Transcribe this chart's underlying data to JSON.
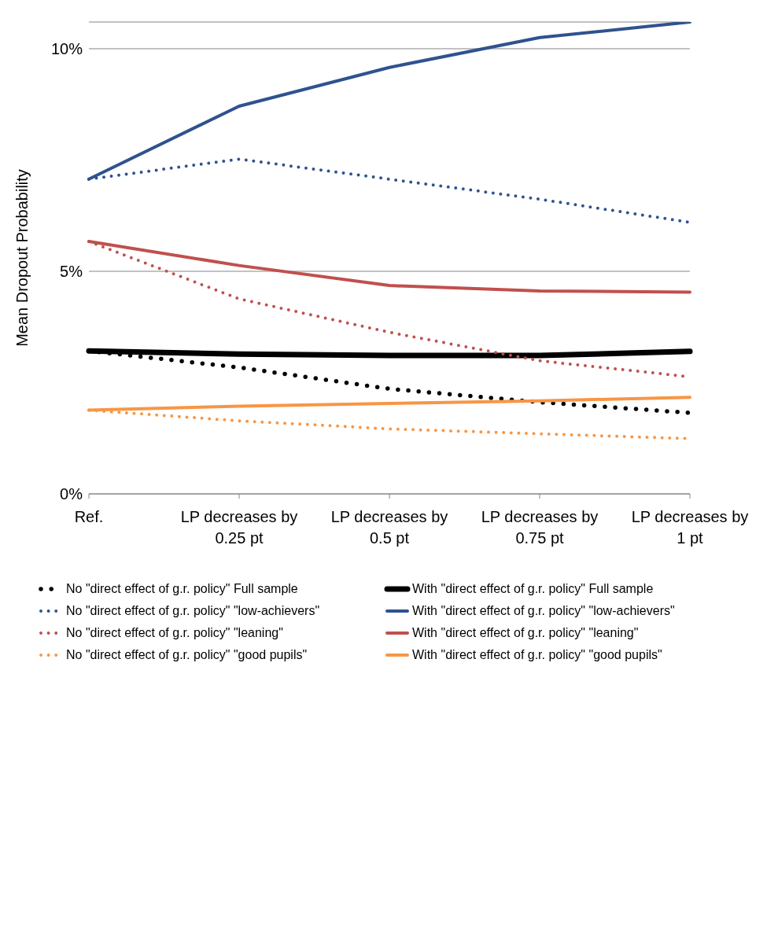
{
  "chart_data": {
    "type": "line",
    "ylabel": "Mean Dropout Probability",
    "categories": [
      "Ref.",
      "LP decreases by 0.25 pt",
      "LP decreases by 0.5 pt",
      "LP decreases by 0.75 pt",
      "LP decreases by 1 pt"
    ],
    "ylim": [
      0,
      10.6
    ],
    "yticks": [
      {
        "value": 0,
        "label": "0%"
      },
      {
        "value": 5,
        "label": "5%"
      },
      {
        "value": 10,
        "label": "10%"
      }
    ],
    "grid": "y",
    "legend": "bottom",
    "marker": "none",
    "series": [
      {
        "name": "No \"direct effect of g.r. policy\" Full sample",
        "color": "#000000",
        "line_style": "dotted",
        "values": [
          3.21,
          2.84,
          2.36,
          2.06,
          1.82
        ]
      },
      {
        "name": "With \"direct effect of g.r. policy\" Full sample",
        "color": "#000000",
        "line_style": "solid",
        "values": [
          3.21,
          3.14,
          3.11,
          3.11,
          3.2
        ]
      },
      {
        "name": "No \"direct effect of g.r. policy\" \"low-achievers\"",
        "color": "#2f528f",
        "line_style": "dotted",
        "values": [
          7.07,
          7.52,
          7.07,
          6.62,
          6.1
        ]
      },
      {
        "name": "With \"direct effect of g.r. policy\" \"low-achievers\"",
        "color": "#2f528f",
        "line_style": "solid",
        "values": [
          7.07,
          8.71,
          9.58,
          10.25,
          10.6
        ]
      },
      {
        "name": "No \"direct effect of g.r. policy\" \"leaning\"",
        "color": "#c0504d",
        "line_style": "dotted",
        "values": [
          5.67,
          4.38,
          3.63,
          2.99,
          2.63
        ]
      },
      {
        "name": "With \"direct effect of g.r. policy\" \"leaning\"",
        "color": "#c0504d",
        "line_style": "solid",
        "values": [
          5.67,
          5.13,
          4.68,
          4.56,
          4.53
        ]
      },
      {
        "name": "No \"direct effect of g.r. policy\" \"good pupils\"",
        "color": "#f79646",
        "line_style": "dotted",
        "values": [
          1.88,
          1.64,
          1.46,
          1.35,
          1.24
        ]
      },
      {
        "name": "With \"direct effect of g.r. policy\" \"good pupils\"",
        "color": "#f79646",
        "line_style": "solid",
        "values": [
          1.88,
          1.97,
          2.03,
          2.09,
          2.17
        ]
      }
    ]
  }
}
